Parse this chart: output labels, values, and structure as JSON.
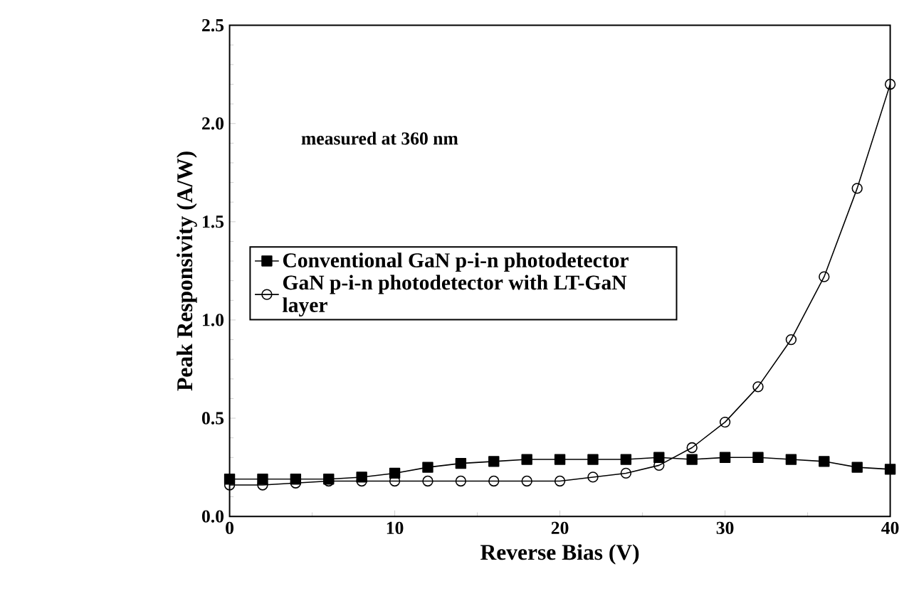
{
  "chart_data": {
    "type": "line",
    "xlabel": "Reverse Bias (V)",
    "ylabel": "Peak Responsivity (A/W)",
    "annotations": [
      "measured at 360 nm"
    ],
    "x": [
      0,
      2,
      4,
      6,
      8,
      10,
      12,
      14,
      16,
      18,
      20,
      22,
      24,
      26,
      28,
      30,
      32,
      34,
      36,
      38,
      40
    ],
    "series": [
      {
        "name": "Conventional GaN p-i-n photodetector",
        "color": "#000000",
        "marker": "square",
        "values": [
          0.19,
          0.19,
          0.19,
          0.19,
          0.2,
          0.22,
          0.25,
          0.27,
          0.28,
          0.29,
          0.29,
          0.29,
          0.29,
          0.3,
          0.29,
          0.3,
          0.3,
          0.29,
          0.28,
          0.25,
          0.24
        ]
      },
      {
        "name": "GaN p-i-n photodetector with LT-GaN layer",
        "color": "#000000",
        "marker": "circle",
        "values": [
          0.16,
          0.16,
          0.17,
          0.18,
          0.18,
          0.18,
          0.18,
          0.18,
          0.18,
          0.18,
          0.18,
          0.2,
          0.22,
          0.26,
          0.35,
          0.48,
          0.66,
          0.9,
          1.22,
          1.67,
          2.2
        ]
      }
    ],
    "xlim": [
      0,
      40
    ],
    "ylim": [
      0,
      2.5
    ],
    "xticks": [
      0,
      10,
      20,
      30,
      40
    ],
    "yticks": [
      {
        "value": 0,
        "label": "0.0"
      },
      {
        "value": 0.5,
        "label": "0.5"
      },
      {
        "value": 1,
        "label": "1.0"
      },
      {
        "value": 1.5,
        "label": "1.5"
      },
      {
        "value": 2,
        "label": "2.0"
      },
      {
        "value": 2.5,
        "label": "2.5"
      }
    ],
    "grid": false,
    "legend": "left",
    "line_style": "solid"
  }
}
